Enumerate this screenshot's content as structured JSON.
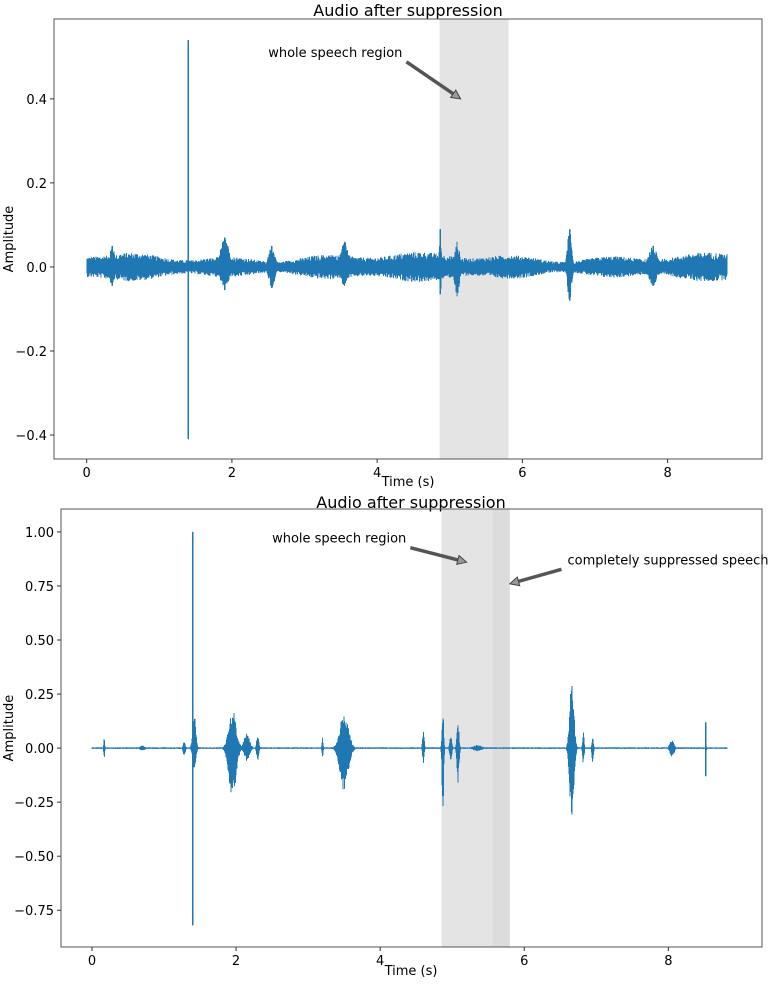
{
  "chart_data": [
    {
      "type": "line",
      "title": "Audio after suppression",
      "xlabel": "Time (s)",
      "ylabel": "Amplitude",
      "xlim": [
        -0.45,
        9.3
      ],
      "ylim": [
        -0.457,
        0.59
      ],
      "xticks": [
        "0",
        "2",
        "4",
        "6",
        "8"
      ],
      "xtick_values": [
        0,
        2,
        4,
        6,
        8
      ],
      "yticks": [
        "0.4",
        "0.2",
        "0.0",
        "−0.2",
        "−0.4"
      ],
      "ytick_values": [
        0.4,
        0.2,
        0.0,
        -0.2,
        -0.4
      ],
      "grid": false,
      "color": "#1f77b4",
      "duration": 8.82,
      "base_noise": 0.03,
      "events": [
        {
          "t": 1.4,
          "width": 0.004,
          "pos": 0.54,
          "neg": -0.41
        },
        {
          "t": 0.35,
          "width": 0.05,
          "pos": 0.05,
          "neg": -0.045
        },
        {
          "t": 1.9,
          "width": 0.08,
          "pos": 0.07,
          "neg": -0.055
        },
        {
          "t": 2.55,
          "width": 0.06,
          "pos": 0.05,
          "neg": -0.05
        },
        {
          "t": 3.55,
          "width": 0.08,
          "pos": 0.06,
          "neg": -0.045
        },
        {
          "t": 4.87,
          "width": 0.02,
          "pos": 0.09,
          "neg": -0.065
        },
        {
          "t": 5.1,
          "width": 0.05,
          "pos": 0.06,
          "neg": -0.07
        },
        {
          "t": 6.65,
          "width": 0.04,
          "pos": 0.09,
          "neg": -0.08
        },
        {
          "t": 7.8,
          "width": 0.08,
          "pos": 0.05,
          "neg": -0.045
        }
      ],
      "shaded_regions": [
        {
          "x0": 4.86,
          "x1": 5.81,
          "color": "#e4e4e4"
        }
      ],
      "annotations": [
        {
          "text": "whole speech region",
          "text_x": 2.5,
          "text_y": 0.5,
          "arrow_to_x": 5.15,
          "arrow_to_y": 0.4
        }
      ]
    },
    {
      "type": "line",
      "title": "Audio after suppression",
      "xlabel": "Time (s)",
      "ylabel": "Amplitude",
      "xlim": [
        -0.43,
        9.3
      ],
      "ylim": [
        -0.92,
        1.106
      ],
      "xticks": [
        "0",
        "2",
        "4",
        "6",
        "8"
      ],
      "xtick_values": [
        0,
        2,
        4,
        6,
        8
      ],
      "yticks": [
        "1.00",
        "0.75",
        "0.50",
        "0.25",
        "0.00",
        "−0.25",
        "−0.50",
        "−0.75"
      ],
      "ytick_values": [
        1.0,
        0.75,
        0.5,
        0.25,
        0.0,
        -0.25,
        -0.5,
        -0.75
      ],
      "grid": false,
      "color": "#1f77b4",
      "duration": 8.82,
      "base_noise": 0.004,
      "events": [
        {
          "t": 0.17,
          "width": 0.01,
          "pos": 0.05,
          "neg": -0.05
        },
        {
          "t": 0.7,
          "width": 0.05,
          "pos": 0.012,
          "neg": -0.012
        },
        {
          "t": 1.28,
          "width": 0.02,
          "pos": 0.03,
          "neg": -0.04
        },
        {
          "t": 1.4,
          "width": 0.004,
          "pos": 1.0,
          "neg": -0.82
        },
        {
          "t": 1.42,
          "width": 0.03,
          "pos": 0.17,
          "neg": -0.1
        },
        {
          "t": 1.95,
          "width": 0.07,
          "pos": 0.18,
          "neg": -0.24
        },
        {
          "t": 2.15,
          "width": 0.05,
          "pos": 0.07,
          "neg": -0.06
        },
        {
          "t": 2.3,
          "width": 0.02,
          "pos": 0.07,
          "neg": -0.06
        },
        {
          "t": 3.2,
          "width": 0.01,
          "pos": 0.06,
          "neg": -0.06
        },
        {
          "t": 3.5,
          "width": 0.08,
          "pos": 0.17,
          "neg": -0.2
        },
        {
          "t": 4.6,
          "width": 0.015,
          "pos": 0.1,
          "neg": -0.08
        },
        {
          "t": 4.87,
          "width": 0.015,
          "pos": 0.19,
          "neg": -0.36
        },
        {
          "t": 4.98,
          "width": 0.02,
          "pos": 0.06,
          "neg": -0.06
        },
        {
          "t": 5.08,
          "width": 0.02,
          "pos": 0.13,
          "neg": -0.16
        },
        {
          "t": 5.35,
          "width": 0.08,
          "pos": 0.015,
          "neg": -0.015
        },
        {
          "t": 6.66,
          "width": 0.04,
          "pos": 0.32,
          "neg": -0.34
        },
        {
          "t": 6.82,
          "width": 0.015,
          "pos": 0.08,
          "neg": -0.08
        },
        {
          "t": 6.95,
          "width": 0.015,
          "pos": 0.05,
          "neg": -0.07
        },
        {
          "t": 8.05,
          "width": 0.04,
          "pos": 0.04,
          "neg": -0.04
        },
        {
          "t": 8.52,
          "width": 0.006,
          "pos": 0.12,
          "neg": -0.13
        }
      ],
      "shaded_regions": [
        {
          "x0": 4.85,
          "x1": 5.56,
          "color": "#e4e4e4"
        },
        {
          "x0": 5.56,
          "x1": 5.8,
          "color": "#dcdcdc"
        }
      ],
      "annotations": [
        {
          "text": "whole speech region",
          "text_x": 2.5,
          "text_y": 0.95,
          "arrow_to_x": 5.2,
          "arrow_to_y": 0.86
        },
        {
          "text": "completely suppressed speech",
          "text_x": 6.6,
          "text_y": 0.85,
          "arrow_to_x": 5.8,
          "arrow_to_y": 0.76
        }
      ]
    }
  ]
}
